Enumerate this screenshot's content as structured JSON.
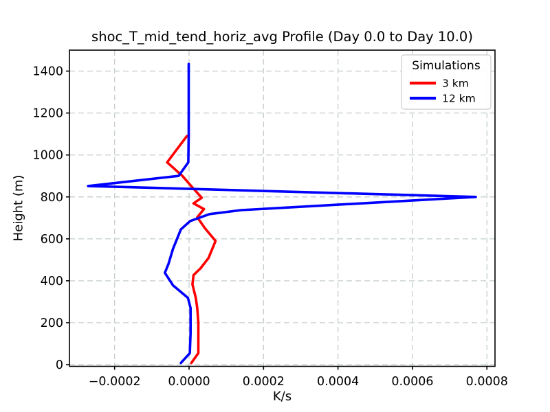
{
  "figure": {
    "background": "#ffffff"
  },
  "chart_data": {
    "type": "line",
    "title": "shoc_T_mid_tend_horiz_avg Profile (Day 0.0 to Day 10.0)",
    "xlabel": "K/s",
    "ylabel": "Height (m)",
    "xlim": [
      -0.0003213,
      0.0008217
    ],
    "ylim": [
      -8,
      1500
    ],
    "xticks": [
      -0.0002,
      0.0,
      0.0002,
      0.0004,
      0.0006,
      0.0008
    ],
    "xtick_labels": [
      "−0.0002",
      "0.0000",
      "0.0002",
      "0.0004",
      "0.0006",
      "0.0008"
    ],
    "yticks": [
      0,
      200,
      400,
      600,
      800,
      1000,
      1200,
      1400
    ],
    "ytick_labels": [
      "0",
      "200",
      "400",
      "600",
      "800",
      "1000",
      "1200",
      "1400"
    ],
    "grid": true,
    "grid_color": "#c8d0d0",
    "axis_color": "#000000",
    "legend": {
      "title": "Simulations",
      "position": "upper right",
      "entries": [
        {
          "label": "3 km",
          "color": "#ff0000"
        },
        {
          "label": "12 km",
          "color": "#0000ff"
        }
      ]
    },
    "series": [
      {
        "name": "3 km",
        "color": "#ff0000",
        "points_unit": "[K/s, height_m]",
        "points": [
          [
            6e-06,
            8
          ],
          [
            2.5e-05,
            55
          ],
          [
            2.5e-05,
            200
          ],
          [
            2.2e-05,
            270
          ],
          [
            1.8e-05,
            318
          ],
          [
            9e-06,
            383
          ],
          [
            1.2e-05,
            427
          ],
          [
            3.1e-05,
            460
          ],
          [
            5.2e-05,
            508
          ],
          [
            7.1e-05,
            590
          ],
          [
            4.3e-05,
            650
          ],
          [
            2.2e-05,
            703
          ],
          [
            4e-05,
            742
          ],
          [
            1.2e-05,
            769
          ],
          [
            3.4e-05,
            796
          ],
          [
            6e-06,
            851
          ],
          [
            -1.8e-05,
            900
          ],
          [
            -5.9e-05,
            965
          ],
          [
            -6e-06,
            1090
          ]
        ]
      },
      {
        "name": "12 km",
        "color": "#0000ff",
        "points_unit": "[K/s, height_m]",
        "points": [
          [
            -2.2e-05,
            8
          ],
          [
            2e-06,
            55
          ],
          [
            4e-06,
            150
          ],
          [
            4e-06,
            270
          ],
          [
            -3e-06,
            318
          ],
          [
            -4.3e-05,
            378
          ],
          [
            -6.5e-05,
            438
          ],
          [
            -5.5e-05,
            482
          ],
          [
            -4.3e-05,
            553
          ],
          [
            -2.2e-05,
            645
          ],
          [
            3e-06,
            685
          ],
          [
            5.5e-05,
            718
          ],
          [
            0.00014,
            737
          ],
          [
            0.00077,
            800
          ],
          [
            -0.000271,
            852
          ],
          [
            -2.8e-05,
            900
          ],
          [
            -2e-06,
            965
          ],
          [
            -1e-06,
            1100
          ],
          [
            -1e-06,
            1434
          ]
        ]
      }
    ]
  }
}
